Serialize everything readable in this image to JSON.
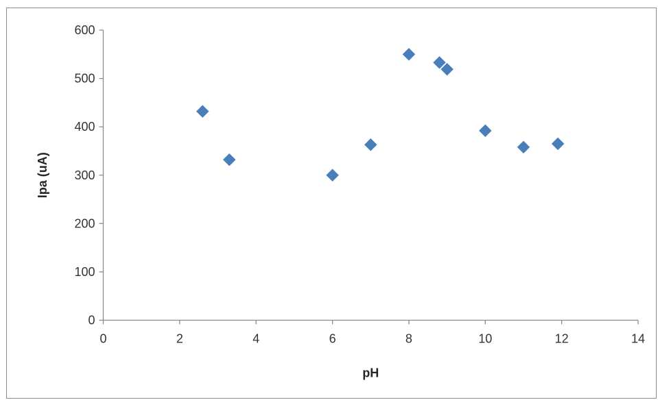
{
  "chart_data": {
    "type": "scatter",
    "title": "",
    "xlabel": "pH",
    "ylabel": "Ipa (uA)",
    "xlim": [
      0,
      14
    ],
    "ylim": [
      0,
      600
    ],
    "x_ticks": [
      0,
      2,
      4,
      6,
      8,
      10,
      12,
      14
    ],
    "y_ticks": [
      0,
      100,
      200,
      300,
      400,
      500,
      600
    ],
    "x_tick_labels": [
      "0",
      "2",
      "4",
      "6",
      "8",
      "10",
      "12",
      "14"
    ],
    "y_tick_labels": [
      "0",
      "100",
      "200",
      "300",
      "400",
      "500",
      "600"
    ],
    "grid": false,
    "legend": "none",
    "marker": "diamond",
    "marker_color": "#4a7ebb",
    "series": [
      {
        "points": [
          {
            "x": 2.6,
            "y": 432
          },
          {
            "x": 3.3,
            "y": 332
          },
          {
            "x": 6.0,
            "y": 300
          },
          {
            "x": 7.0,
            "y": 363
          },
          {
            "x": 8.0,
            "y": 550
          },
          {
            "x": 8.8,
            "y": 533
          },
          {
            "x": 9.0,
            "y": 519
          },
          {
            "x": 10.0,
            "y": 392
          },
          {
            "x": 11.0,
            "y": 358
          },
          {
            "x": 11.9,
            "y": 365
          }
        ]
      }
    ]
  }
}
